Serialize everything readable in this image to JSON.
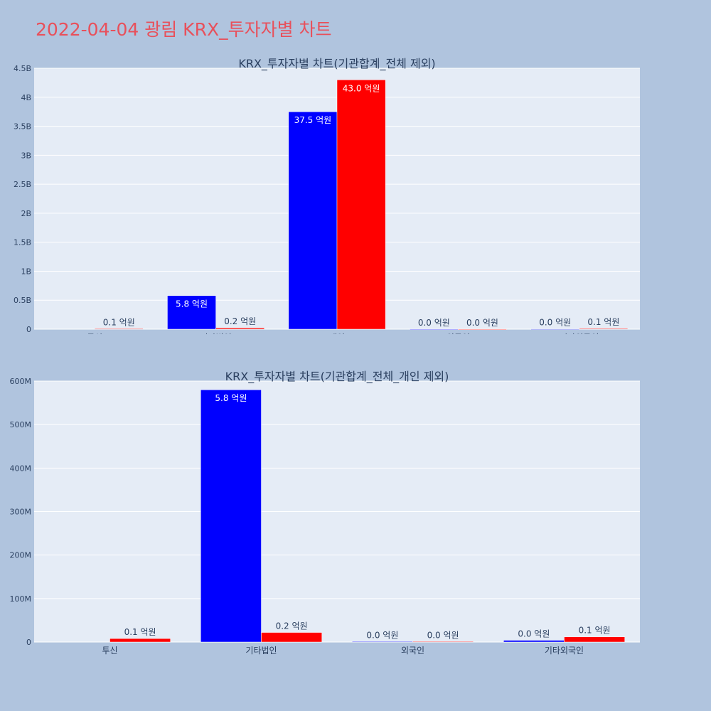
{
  "page": {
    "title": "2022-04-04 광림 KRX_투자자별 차트"
  },
  "colors": {
    "background": "#b0c4de",
    "plot_background": "#e5ecf6",
    "title": "#e8505b",
    "series_blue": "#0000ff",
    "series_red": "#ff0000"
  },
  "chart_data": [
    {
      "type": "bar",
      "title": "KRX_투자자별 차트(기관합계_전체 제외)",
      "categories": [
        "투신",
        "기타법인",
        "개인",
        "외국인",
        "기타외국인"
      ],
      "series": [
        {
          "color": "#0000ff",
          "values": [
            0,
            580000000,
            3750000000,
            1000000,
            4000000
          ],
          "labels": [
            "",
            "5.8 억원",
            "37.5 억원",
            "0.0 억원",
            "0.0 억원"
          ]
        },
        {
          "color": "#ff0000",
          "values": [
            8000000,
            22000000,
            4300000000,
            1000000,
            12000000
          ],
          "labels": [
            "0.1 억원",
            "0.2 억원",
            "43.0 억원",
            "0.0 억원",
            "0.1 억원"
          ]
        }
      ],
      "ylim": [
        0,
        4500000000
      ],
      "yticks": [
        0,
        500000000,
        1000000000,
        1500000000,
        2000000000,
        2500000000,
        3000000000,
        3500000000,
        4000000000,
        4500000000
      ],
      "ytick_labels": [
        "0",
        "0.5B",
        "1B",
        "1.5B",
        "2B",
        "2.5B",
        "3B",
        "3.5B",
        "4B",
        "4.5B"
      ],
      "grid": true
    },
    {
      "type": "bar",
      "title": "KRX_투자자별 차트(기관합계_전체_개인 제외)",
      "categories": [
        "투신",
        "기타법인",
        "외국인",
        "기타외국인"
      ],
      "series": [
        {
          "color": "#0000ff",
          "values": [
            0,
            580000000,
            1000000,
            4000000
          ],
          "labels": [
            "",
            "5.8 억원",
            "0.0 억원",
            "0.0 억원"
          ]
        },
        {
          "color": "#ff0000",
          "values": [
            8000000,
            22000000,
            1000000,
            12000000
          ],
          "labels": [
            "0.1 억원",
            "0.2 억원",
            "0.0 억원",
            "0.1 억원"
          ]
        }
      ],
      "ylim": [
        0,
        600000000
      ],
      "yticks": [
        0,
        100000000,
        200000000,
        300000000,
        400000000,
        500000000,
        600000000
      ],
      "ytick_labels": [
        "0",
        "100M",
        "200M",
        "300M",
        "400M",
        "500M",
        "600M"
      ],
      "grid": true
    }
  ]
}
